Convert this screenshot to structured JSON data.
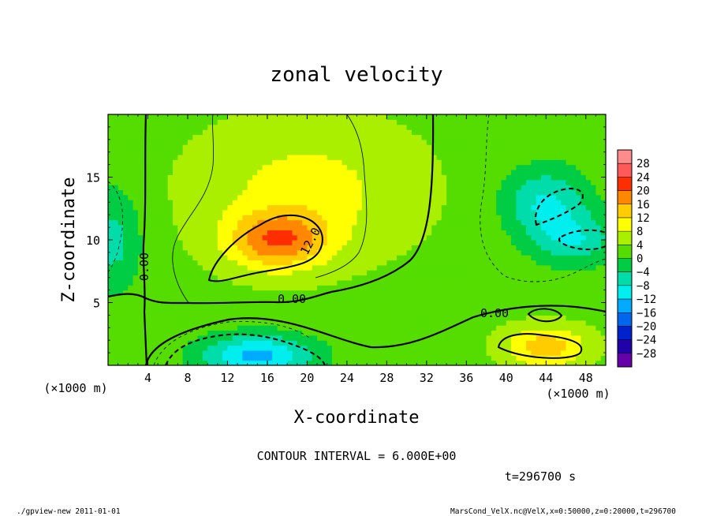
{
  "chart_data": {
    "type": "heatmap",
    "title": "zonal velocity",
    "xlabel": "X-coordinate",
    "ylabel": "Z-coordinate",
    "x_units_label": "(×1000 m)",
    "y_units_label": "(×1000 m)",
    "xlim": [
      0,
      50
    ],
    "ylim": [
      0,
      20
    ],
    "x_ticks": [
      {
        "value": 4,
        "label": "4"
      },
      {
        "value": 8,
        "label": "8"
      },
      {
        "value": 12,
        "label": "12"
      },
      {
        "value": 16,
        "label": "16"
      },
      {
        "value": 20,
        "label": "20"
      },
      {
        "value": 24,
        "label": "24"
      },
      {
        "value": 28,
        "label": "28"
      },
      {
        "value": 32,
        "label": "32"
      },
      {
        "value": 36,
        "label": "36"
      },
      {
        "value": 40,
        "label": "40"
      },
      {
        "value": 44,
        "label": "44"
      },
      {
        "value": 48,
        "label": "48"
      }
    ],
    "y_ticks": [
      {
        "value": 5,
        "label": "5"
      },
      {
        "value": 10,
        "label": "10"
      },
      {
        "value": 15,
        "label": "15"
      }
    ],
    "colorbar": {
      "labels": [
        "28",
        "24",
        "20",
        "16",
        "12",
        "8",
        "4",
        "0",
        "−4",
        "−8",
        "−12",
        "−16",
        "−20",
        "−24",
        "−28"
      ],
      "values": [
        28,
        24,
        20,
        16,
        12,
        8,
        4,
        0,
        -4,
        -8,
        -12,
        -16,
        -20,
        -24,
        -28
      ],
      "colors": [
        "#ff8c8c",
        "#ff5a5a",
        "#ff2e00",
        "#ff8800",
        "#ffcc00",
        "#ffff00",
        "#aaee00",
        "#55dd00",
        "#00cc44",
        "#00ddaa",
        "#00eeee",
        "#00aaff",
        "#0066ee",
        "#0022cc",
        "#2200aa",
        "#6600aa"
      ]
    },
    "contour_interval_text": "CONTOUR INTERVAL = 6.000E+00",
    "time_text": "t=296700 s",
    "contour_labels": [
      {
        "text": "0.00",
        "x": 4.4,
        "z": 7.9
      },
      {
        "text": "12.0",
        "x": 20.5,
        "z": 9.8
      },
      {
        "text": "0.00",
        "x": 18.5,
        "z": 5.1
      },
      {
        "text": "0.00",
        "x": 38.3,
        "z": 4.2
      }
    ],
    "field_features": [
      {
        "name": "jet-core",
        "x": 17,
        "z": 10,
        "value": 15,
        "sx": 3.5,
        "sz": 1.6
      },
      {
        "name": "upper-broad-positive",
        "x": 20,
        "z": 14,
        "value": 7,
        "sx": 8,
        "sz": 4
      },
      {
        "name": "lower-negative",
        "x": 15,
        "z": 0.8,
        "value": -16,
        "sx": 4,
        "sz": 1.2
      },
      {
        "name": "right-negative-upper",
        "x": 44,
        "z": 13,
        "value": -11,
        "sx": 3,
        "sz": 2
      },
      {
        "name": "right-negative-mid",
        "x": 47,
        "z": 10,
        "value": -9,
        "sx": 3,
        "sz": 1.5
      },
      {
        "name": "left-negative",
        "x": 0.5,
        "z": 10,
        "value": -8,
        "sx": 2,
        "sz": 3
      },
      {
        "name": "surface-positive-right",
        "x": 44,
        "z": 1.5,
        "value": 12,
        "sx": 3,
        "sz": 1.2
      }
    ]
  },
  "footer": {
    "left": "./gpview-new   2011-01-01",
    "right": "MarsCond_VelX.nc@VelX,x=0:50000,z=0:20000,t=296700"
  }
}
